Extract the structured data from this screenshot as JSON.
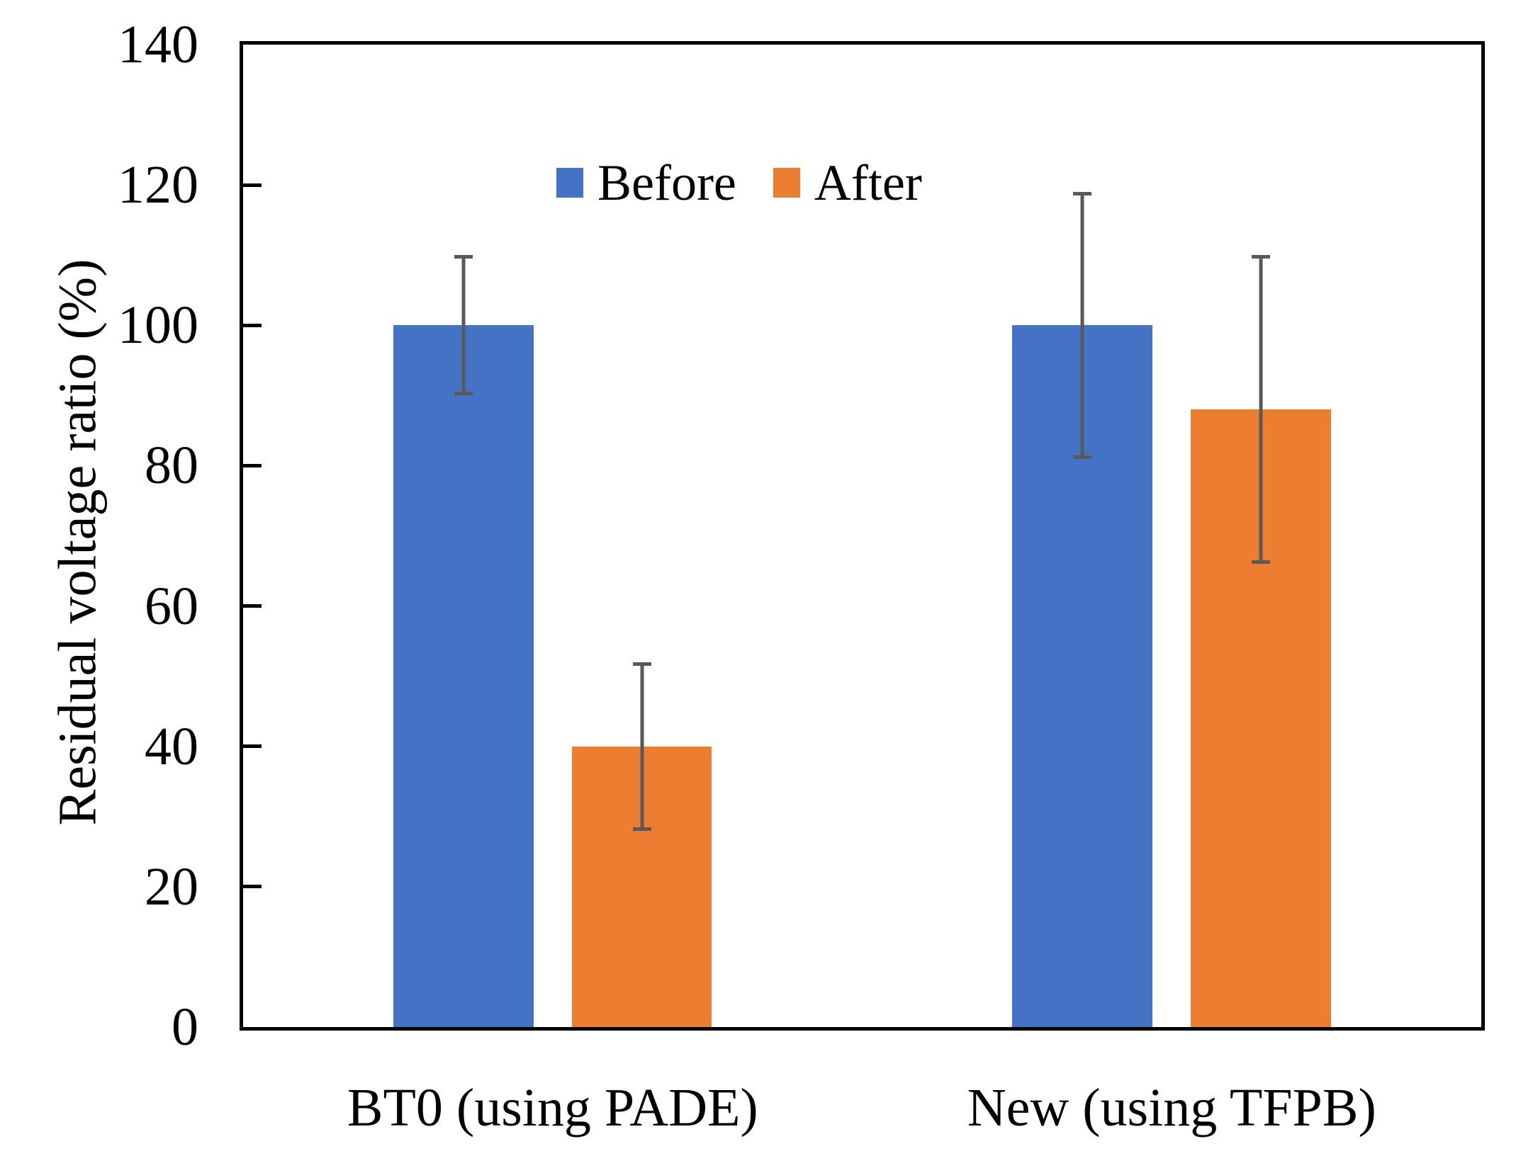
{
  "chart_data": {
    "type": "bar",
    "title": "",
    "xlabel": "",
    "ylabel": "Residual voltage ratio (%)",
    "ylim": [
      0,
      140
    ],
    "ytick_step": 20,
    "yticks": [
      0,
      20,
      40,
      60,
      80,
      100,
      120,
      140
    ],
    "categories": [
      "BT0 (using PADE)",
      "New (using TFPB)"
    ],
    "series": [
      {
        "name": "Before",
        "color": "#4472C4",
        "values": [
          100,
          100
        ],
        "error_low": [
          90,
          81
        ],
        "error_high": [
          110,
          119
        ]
      },
      {
        "name": "After",
        "color": "#ED7D31",
        "values": [
          40,
          88
        ],
        "error_low": [
          28,
          66
        ],
        "error_high": [
          52,
          110
        ]
      }
    ],
    "error_bar_color": "#595959",
    "axis_color": "#000000",
    "grid": "off",
    "legend_position": "inside-top-center"
  }
}
